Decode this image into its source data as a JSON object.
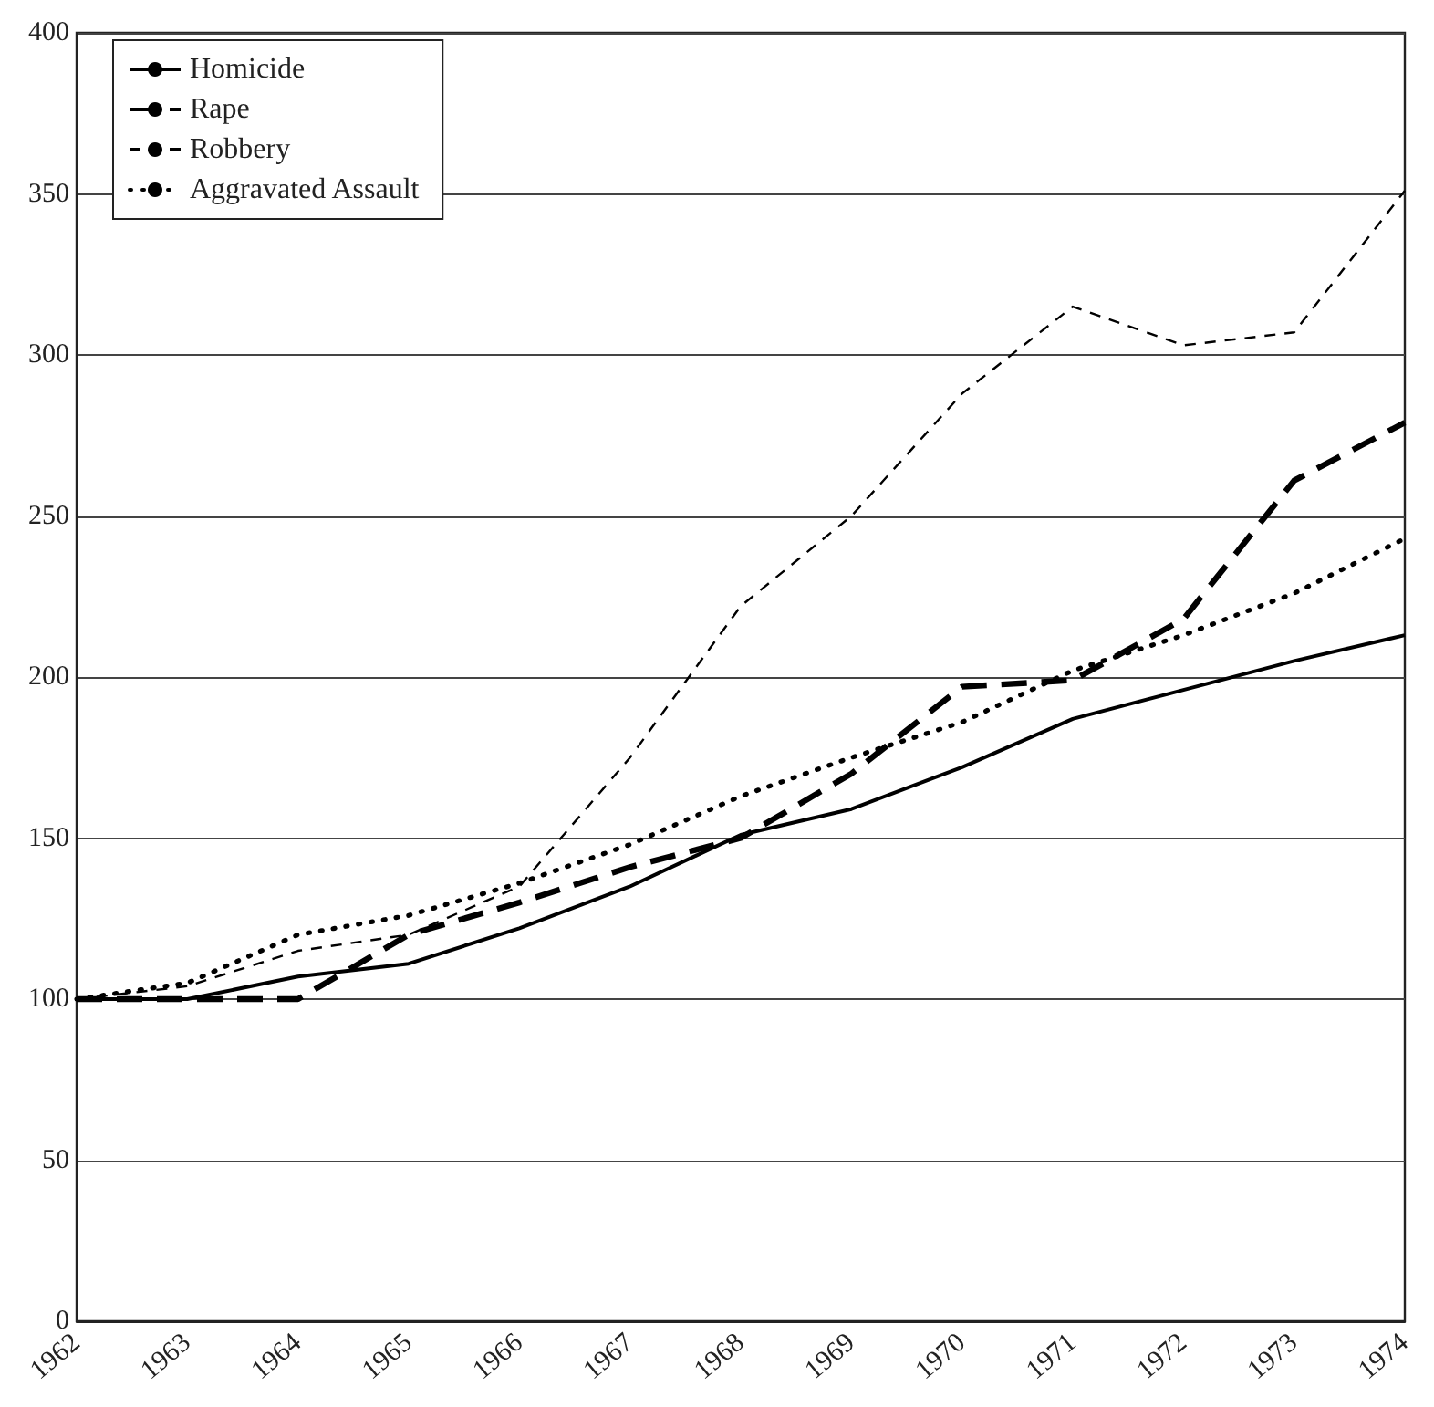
{
  "chart_data": {
    "type": "line",
    "categories": [
      "1962",
      "1963",
      "1964",
      "1965",
      "1966",
      "1967",
      "1968",
      "1969",
      "1970",
      "1971",
      "1972",
      "1973",
      "1974"
    ],
    "series": [
      {
        "name": "Homicide",
        "color": "#000000",
        "line_style": "solid",
        "values": [
          100,
          100,
          107,
          111,
          122,
          135,
          151,
          159,
          172,
          187,
          196,
          205,
          213
        ]
      },
      {
        "name": "Rape",
        "color": "#000000",
        "line_style": "dashed",
        "values": [
          100,
          100,
          100,
          120,
          130,
          141,
          150,
          170,
          197,
          199,
          218,
          261,
          279
        ]
      },
      {
        "name": "Robbery",
        "color": "#000000",
        "line_style": "dashed",
        "values": [
          100,
          104,
          115,
          120,
          135,
          175,
          222,
          250,
          288,
          315,
          303,
          307,
          351
        ]
      },
      {
        "name": "Aggravated Assault",
        "color": "#000000",
        "line_style": "dotted",
        "values": [
          100,
          105,
          120,
          126,
          136,
          148,
          163,
          175,
          186,
          202,
          213,
          226,
          243
        ]
      }
    ],
    "ylim": [
      0,
      400
    ],
    "yticks": [
      0,
      50,
      100,
      150,
      200,
      250,
      300,
      350,
      400
    ],
    "grid": "y",
    "legend": "top left",
    "marker": "none"
  }
}
